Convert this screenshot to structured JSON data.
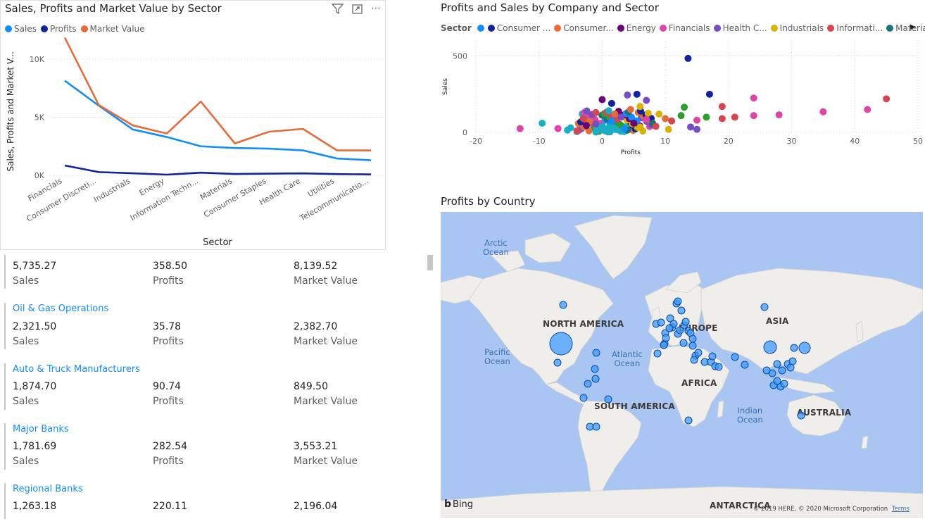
{
  "line_chart": {
    "title": "Sales, Profits and Market Value by Sector",
    "legend": [
      {
        "name": "Sales",
        "color": "#118dff"
      },
      {
        "name": "Profits",
        "color": "#12239e"
      },
      {
        "name": "Market Value",
        "color": "#e66c37"
      }
    ],
    "icons": [
      "filter-icon",
      "focus-mode-icon",
      "more-options-icon"
    ]
  },
  "scatter": {
    "title": "Profits and Sales by Company and Sector",
    "legend_label": "Sector",
    "legend": [
      {
        "name": "",
        "color": "#118dff"
      },
      {
        "name": "Consumer ...",
        "color": "#12239e"
      },
      {
        "name": "Consumer...",
        "color": "#e66c37"
      },
      {
        "name": "Energy",
        "color": "#6b007b"
      },
      {
        "name": "Financials",
        "color": "#e044a7"
      },
      {
        "name": "Health C...",
        "color": "#744ec2"
      },
      {
        "name": "Industrials",
        "color": "#d9b300"
      },
      {
        "name": "Informati...",
        "color": "#d64550"
      },
      {
        "name": "Materials",
        "color": "#197278"
      }
    ]
  },
  "map": {
    "title": "Profits by Country",
    "labels": {
      "north_america": "NORTH AMERICA",
      "south_america": "SOUTH AMERICA",
      "europe": "EUROPE",
      "africa": "AFRICA",
      "asia": "ASIA",
      "australia": "AUSTRALIA",
      "antarctica": "ANTARCTICA",
      "arctic_1": "Arctic",
      "arctic_2": "Ocean",
      "pacific_1": "Pacific",
      "pacific_2": "Ocean",
      "atlantic_1": "Atlantic",
      "atlantic_2": "Ocean",
      "indian_1": "Indian",
      "indian_2": "Ocean"
    },
    "bing": "Bing",
    "copyright": "© 2019 HERE, © 2020 Microsoft Corporation",
    "terms": "Terms"
  },
  "multirow": {
    "first": {
      "sales": "5,735.27",
      "profits": "358.50",
      "market_value": "8,139.52"
    },
    "labels": {
      "sales": "Sales",
      "profits": "Profits",
      "market_value": "Market Value"
    },
    "rows": [
      {
        "name": "Oil & Gas Operations",
        "sales": "2,321.50",
        "profits": "35.78",
        "market_value": "2,382.70"
      },
      {
        "name": "Auto & Truck Manufacturers",
        "sales": "1,874.70",
        "profits": "90.74",
        "market_value": "849.50"
      },
      {
        "name": "Major Banks",
        "sales": "1,781.69",
        "profits": "282.54",
        "market_value": "3,553.21"
      },
      {
        "name": "Regional Banks",
        "sales": "1,263.18",
        "profits": "220.11",
        "market_value": "2,196.04"
      }
    ]
  },
  "chart_data": [
    {
      "type": "line",
      "title": "Sales, Profits and Market Value by Sector",
      "xlabel": "Sector",
      "ylabel": "Sales, Profits and Market V...",
      "categories": [
        "Financials",
        "Consumer Discreti...",
        "Industrials",
        "Energy",
        "Information Techn...",
        "Materials",
        "Consumer Staples",
        "Health Care",
        "Utilities",
        "Telecommunicatio..."
      ],
      "yticks": [
        "0K",
        "5K",
        "10K"
      ],
      "ylim": [
        0,
        12000
      ],
      "grid": true,
      "legend_position": "top-left",
      "series": [
        {
          "name": "Sales",
          "color": "#118dff",
          "values": [
            8150,
            6000,
            3950,
            3300,
            2500,
            2350,
            2300,
            2150,
            1450,
            1300
          ]
        },
        {
          "name": "Profits",
          "color": "#12239e",
          "values": [
            850,
            280,
            180,
            60,
            230,
            120,
            150,
            170,
            110,
            80
          ]
        },
        {
          "name": "Market Value",
          "color": "#e66c37",
          "values": [
            11850,
            6050,
            4300,
            3600,
            6350,
            2750,
            3750,
            4000,
            2150,
            2150
          ]
        }
      ]
    },
    {
      "type": "scatter",
      "title": "Profits and Sales by Company and Sector",
      "xlabel": "Profits",
      "ylabel": "Sales",
      "xlim": [
        -20,
        50
      ],
      "ylim": [
        0,
        600
      ],
      "xticks": [
        "-20",
        "-10",
        "0",
        "10",
        "20",
        "30",
        "40",
        "50"
      ],
      "yticks": [
        "0",
        "500"
      ],
      "grid": true,
      "points": [
        {
          "x": 13.6,
          "y": 485,
          "color": "#12239e"
        },
        {
          "x": 17,
          "y": 250,
          "color": "#12239e"
        },
        {
          "x": 45,
          "y": 220,
          "color": "#d64550"
        },
        {
          "x": 24,
          "y": 225,
          "color": "#e044a7"
        },
        {
          "x": 19,
          "y": 170,
          "color": "#d64550"
        },
        {
          "x": 35,
          "y": 135,
          "color": "#e044a7"
        },
        {
          "x": 42,
          "y": 150,
          "color": "#e044a7"
        },
        {
          "x": 28,
          "y": 115,
          "color": "#e044a7"
        },
        {
          "x": 24,
          "y": 110,
          "color": "#e044a7"
        },
        {
          "x": 21,
          "y": 100,
          "color": "#d64550"
        },
        {
          "x": 19,
          "y": 90,
          "color": "#d64550"
        },
        {
          "x": 13,
          "y": 165,
          "color": "#2ca02c"
        },
        {
          "x": 12.5,
          "y": 110,
          "color": "#2ca02c"
        },
        {
          "x": 16.5,
          "y": 100,
          "color": "#2ca02c"
        },
        {
          "x": 15,
          "y": 80,
          "color": "#e044a7"
        },
        {
          "x": 14,
          "y": 35,
          "color": "#744ec2"
        },
        {
          "x": 15,
          "y": 20,
          "color": "#744ec2"
        },
        {
          "x": -9.5,
          "y": 60,
          "color": "#1aaec4"
        },
        {
          "x": -13,
          "y": 25,
          "color": "#e044a7"
        },
        {
          "x": -7,
          "y": 25,
          "color": "#e044a7"
        },
        {
          "x": -5,
          "y": 30,
          "color": "#1aaec4"
        },
        {
          "x": -4,
          "y": 10,
          "color": "#d64550"
        },
        {
          "x": 0,
          "y": 215,
          "color": "#6b007b"
        },
        {
          "x": 4,
          "y": 245,
          "color": "#744ec2"
        },
        {
          "x": 5.5,
          "y": 250,
          "color": "#12239e"
        },
        {
          "x": 7,
          "y": 210,
          "color": "#744ec2"
        },
        {
          "x": 1.5,
          "y": 190,
          "color": "#12239e"
        },
        {
          "x": 4.5,
          "y": 150,
          "color": "#e66c37"
        },
        {
          "x": 6,
          "y": 170,
          "color": "#d9b300"
        },
        {
          "x": 9,
          "y": 120,
          "color": "#d9b300"
        },
        {
          "x": 10,
          "y": 90,
          "color": "#e66c37"
        },
        {
          "x": 11,
          "y": 75,
          "color": "#d64550"
        },
        {
          "x": 8,
          "y": 60,
          "color": "#197278"
        },
        {
          "x": -3,
          "y": 90,
          "color": "#d64550"
        },
        {
          "x": -2,
          "y": 70,
          "color": "#e66c37"
        },
        {
          "x": -1,
          "y": 55,
          "color": "#744ec2"
        },
        {
          "x": 0,
          "y": 40,
          "color": "#1aaec4"
        },
        {
          "x": 1,
          "y": 30,
          "color": "#1aaec4"
        },
        {
          "x": 2,
          "y": 20,
          "color": "#1aaec4"
        },
        {
          "x": 3,
          "y": 45,
          "color": "#2ca02c"
        },
        {
          "x": 5,
          "y": 60,
          "color": "#6b007b"
        },
        {
          "x": 6,
          "y": 35,
          "color": "#d9b300"
        },
        {
          "x": 7,
          "y": 85,
          "color": "#e044a7"
        },
        {
          "x": 2,
          "y": 120,
          "color": "#e66c37"
        },
        {
          "x": -1,
          "y": 130,
          "color": "#d64550"
        },
        {
          "x": 3,
          "y": 100,
          "color": "#744ec2"
        },
        {
          "x": 8.5,
          "y": 40,
          "color": "#d64550"
        },
        {
          "x": -5.5,
          "y": 15,
          "color": "#1aaec4"
        },
        {
          "x": 0.5,
          "y": 10,
          "color": "#1aaec4"
        },
        {
          "x": 4,
          "y": 15,
          "color": "#197278"
        },
        {
          "x": 10.5,
          "y": 20,
          "color": "#d9b300"
        },
        {
          "x": -2.5,
          "y": 45,
          "color": "#6b007b"
        },
        {
          "x": 1.5,
          "y": 75,
          "color": "#118dff"
        },
        {
          "x": 3.5,
          "y": 25,
          "color": "#118dff"
        }
      ]
    }
  ]
}
